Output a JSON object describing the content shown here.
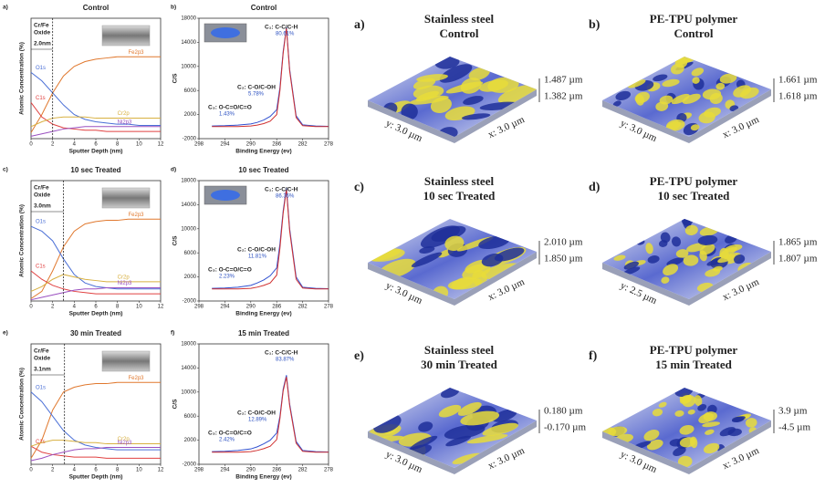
{
  "chart_data": [
    {
      "type": "line",
      "panel_label": "a)",
      "title": "Control",
      "x_label": "Sputter Depth (nm)",
      "y_label": "Atomic Concentration (%)",
      "x": [
        0,
        1,
        2,
        3,
        4,
        5,
        6,
        7,
        8,
        9,
        10,
        11,
        12
      ],
      "xlim": [
        0,
        12
      ],
      "ylim": [
        0,
        100
      ],
      "xticks": [
        0,
        2,
        4,
        6,
        8,
        10,
        12
      ],
      "oxide_region": {
        "lines": [
          "Cr/Fe",
          "Oxide"
        ],
        "depth": {
          "value": 2,
          "label": "2.0nm"
        }
      },
      "series": [
        {
          "name": "Fe2p3",
          "color": "#e0782e",
          "values": [
            5,
            20,
            38,
            52,
            60,
            64,
            66,
            67,
            68,
            68,
            68,
            68,
            68
          ]
        },
        {
          "name": "O1s",
          "color": "#4a6fd6",
          "values": [
            55,
            48,
            38,
            28,
            20,
            16,
            14,
            13,
            12,
            12,
            11,
            11,
            11
          ]
        },
        {
          "name": "C1s",
          "color": "#e04040",
          "values": [
            30,
            18,
            12,
            9,
            8,
            7,
            7,
            6,
            6,
            6,
            6,
            6,
            6
          ]
        },
        {
          "name": "Cr2p",
          "color": "#d8b040",
          "values": [
            10,
            14,
            17,
            18,
            18,
            18,
            17,
            17,
            17,
            17,
            17,
            17,
            17
          ]
        },
        {
          "name": "Ni2p3",
          "color": "#9a50c0",
          "values": [
            2,
            4,
            6,
            8,
            9,
            10,
            10,
            10,
            10,
            10,
            10,
            10,
            10
          ]
        }
      ]
    },
    {
      "type": "line",
      "panel_label": "b)",
      "title": "Control",
      "x_label": "Binding Energy (ev)",
      "y_label": "C/S",
      "x": [
        296,
        294,
        292,
        290,
        289,
        288,
        287,
        286,
        285.5,
        285,
        284.5,
        284,
        283,
        282,
        280,
        278
      ],
      "xlim": [
        298,
        278
      ],
      "ylim": [
        -2000,
        18000
      ],
      "xticks": [
        298,
        294,
        290,
        286,
        282,
        278
      ],
      "yticks": [
        -2000,
        2000,
        6000,
        10000,
        14000,
        18000
      ],
      "components": [
        {
          "label": "C₁: C-C/C-H",
          "percent": "80.61%"
        },
        {
          "label": "C₂: C-O/C-OH",
          "percent": "5.78%"
        },
        {
          "label": "C₃: O-C=O/C=O",
          "percent": "1.43%"
        }
      ],
      "series": [
        {
          "color": "#3050d0",
          "values": [
            100,
            150,
            250,
            450,
            700,
            1100,
            1700,
            2800,
            6500,
            12500,
            16500,
            9500,
            1800,
            300,
            100,
            50
          ]
        },
        {
          "color": "#d03030",
          "values": [
            0,
            0,
            0,
            100,
            250,
            500,
            900,
            2000,
            6000,
            12200,
            16300,
            9200,
            1500,
            150,
            0,
            0
          ]
        }
      ]
    },
    {
      "type": "line",
      "panel_label": "c)",
      "title": "10 sec Treated",
      "x_label": "Sputter Depth (nm)",
      "y_label": "Atomic Concentration (%)",
      "x": [
        0,
        1,
        2,
        3,
        4,
        5,
        6,
        7,
        8,
        9,
        10,
        11,
        12
      ],
      "xlim": [
        0,
        12
      ],
      "ylim": [
        0,
        100
      ],
      "xticks": [
        0,
        2,
        4,
        6,
        8,
        10,
        12
      ],
      "oxide_region": {
        "lines": [
          "Cr/Fe",
          "Oxide"
        ],
        "depth": {
          "value": 3,
          "label": "3.0nm"
        }
      },
      "series": [
        {
          "name": "Fe2p3",
          "color": "#e0782e",
          "values": [
            2,
            8,
            25,
            45,
            58,
            64,
            66,
            67,
            67,
            68,
            68,
            68,
            68
          ]
        },
        {
          "name": "O1s",
          "color": "#4a6fd6",
          "values": [
            62,
            58,
            50,
            35,
            22,
            15,
            12,
            11,
            10,
            10,
            10,
            10,
            10
          ]
        },
        {
          "name": "C1s",
          "color": "#e04040",
          "values": [
            25,
            18,
            13,
            10,
            8,
            7,
            6,
            6,
            6,
            6,
            6,
            6,
            6
          ]
        },
        {
          "name": "Cr2p",
          "color": "#d8b040",
          "values": [
            8,
            12,
            18,
            22,
            20,
            18,
            17,
            16,
            16,
            16,
            16,
            16,
            16
          ]
        },
        {
          "name": "Ni2p3",
          "color": "#9a50c0",
          "values": [
            1,
            3,
            5,
            7,
            9,
            10,
            10,
            11,
            11,
            11,
            11,
            11,
            11
          ]
        }
      ]
    },
    {
      "type": "line",
      "panel_label": "d)",
      "title": "10 sec Treated",
      "x_label": "Binding Energy (ev)",
      "y_label": "C/S",
      "x": [
        296,
        294,
        292,
        290,
        289,
        288,
        287,
        286,
        285.5,
        285,
        284.5,
        284,
        283,
        282,
        280,
        278
      ],
      "xlim": [
        298,
        278
      ],
      "ylim": [
        -2000,
        18000
      ],
      "xticks": [
        298,
        294,
        290,
        286,
        282,
        278
      ],
      "yticks": [
        -2000,
        2000,
        6000,
        10000,
        14000,
        18000
      ],
      "components": [
        {
          "label": "C₁: C-C/C-H",
          "percent": "86.36%"
        },
        {
          "label": "C₂: C-O/C-OH",
          "percent": "11.81%"
        },
        {
          "label": "C₃: O-C=O/C=O",
          "percent": "2.23%"
        }
      ],
      "series": [
        {
          "color": "#3050d0",
          "values": [
            100,
            150,
            300,
            600,
            1000,
            1500,
            2200,
            3500,
            7500,
            13000,
            16800,
            10000,
            2000,
            300,
            100,
            50
          ]
        },
        {
          "color": "#d03030",
          "values": [
            0,
            0,
            0,
            100,
            300,
            600,
            1000,
            2300,
            6800,
            12600,
            16500,
            9600,
            1600,
            150,
            0,
            0
          ]
        }
      ]
    },
    {
      "type": "line",
      "panel_label": "e)",
      "title": "30 min Treated",
      "x_label": "Sputter Depth (nm)",
      "y_label": "Atomic Concentration (%)",
      "x": [
        0,
        1,
        2,
        3,
        4,
        5,
        6,
        7,
        8,
        9,
        10,
        11,
        12
      ],
      "xlim": [
        0,
        12
      ],
      "ylim": [
        0,
        100
      ],
      "xticks": [
        0,
        2,
        4,
        6,
        8,
        10,
        12
      ],
      "oxide_region": {
        "lines": [
          "Cr/Fe",
          "Oxide"
        ],
        "depth": {
          "value": 3.1,
          "label": "3.1nm"
        }
      },
      "series": [
        {
          "name": "Fe2p3",
          "color": "#e0782e",
          "values": [
            5,
            20,
            45,
            60,
            64,
            66,
            67,
            67,
            68,
            68,
            68,
            68,
            68
          ]
        },
        {
          "name": "O1s",
          "color": "#4a6fd6",
          "values": [
            60,
            52,
            40,
            28,
            20,
            16,
            14,
            13,
            12,
            12,
            12,
            12,
            12
          ]
        },
        {
          "name": "C1s",
          "color": "#e04040",
          "values": [
            15,
            10,
            8,
            7,
            6,
            6,
            6,
            5,
            5,
            5,
            5,
            5,
            5
          ]
        },
        {
          "name": "Cr2p",
          "color": "#d8b040",
          "values": [
            15,
            18,
            20,
            20,
            19,
            18,
            18,
            17,
            17,
            17,
            17,
            17,
            17
          ]
        },
        {
          "name": "Ni2p3",
          "color": "#9a50c0",
          "values": [
            3,
            5,
            8,
            10,
            12,
            13,
            13,
            14,
            14,
            14,
            14,
            14,
            14
          ]
        }
      ]
    },
    {
      "type": "line",
      "panel_label": "f)",
      "title": "15 min Treated",
      "x_label": "Binding Energy (ev)",
      "y_label": "C/S",
      "x": [
        296,
        294,
        292,
        290,
        289,
        288,
        287,
        286,
        285.5,
        285,
        284.5,
        284,
        283,
        282,
        280,
        278
      ],
      "xlim": [
        298,
        278
      ],
      "ylim": [
        -2000,
        18000
      ],
      "xticks": [
        298,
        294,
        290,
        286,
        282,
        278
      ],
      "yticks": [
        -2000,
        2000,
        6000,
        10000,
        14000,
        18000
      ],
      "components": [
        {
          "label": "C₁: C-C/C-H",
          "percent": "83.87%"
        },
        {
          "label": "C₂: C-O/C-OH",
          "percent": "12.89%"
        },
        {
          "label": "C₃: O-C=O/C=O",
          "percent": "2.42%"
        }
      ],
      "series": [
        {
          "color": "#3050d0",
          "values": [
            100,
            150,
            300,
            550,
            900,
            1400,
            2000,
            3200,
            6000,
            10500,
            12800,
            8000,
            1800,
            300,
            100,
            50
          ]
        },
        {
          "color": "#d03030",
          "values": [
            0,
            0,
            0,
            100,
            300,
            600,
            1000,
            2100,
            5600,
            10200,
            12500,
            7700,
            1500,
            150,
            0,
            0
          ]
        }
      ]
    }
  ],
  "afm_panels": [
    {
      "letter": "a)",
      "title": [
        "Stainless steel",
        "Control"
      ],
      "z_top": "1.487 µm",
      "z_bottom": "1.382 µm",
      "y_axis": "y: 3.0 µm",
      "x_axis": "x: 3.0 µm"
    },
    {
      "letter": "b)",
      "title": [
        "PE-TPU polymer",
        "Control"
      ],
      "z_top": "1.661 µm",
      "z_bottom": "1.618 µm",
      "y_axis": "y: 3.0 µm",
      "x_axis": "x: 3.0 µm"
    },
    {
      "letter": "c)",
      "title": [
        "Stainless steel",
        "10 sec Treated"
      ],
      "z_top": "2.010 µm",
      "z_bottom": "1.850 µm",
      "y_axis": "y: 3.0 µm",
      "x_axis": "x: 3.0 µm"
    },
    {
      "letter": "d)",
      "title": [
        "PE-TPU polymer",
        "10 sec Treated"
      ],
      "z_top": "1.865 µm",
      "z_bottom": "1.807 µm",
      "y_axis": "y: 2.5 µm",
      "x_axis": "x: 3.0 µm"
    },
    {
      "letter": "e)",
      "title": [
        "Stainless steel",
        "30 min Treated"
      ],
      "z_top": "0.180 µm",
      "z_bottom": "-0.170 µm",
      "y_axis": "y: 3.0 µm",
      "x_axis": "x: 3.0 µm"
    },
    {
      "letter": "f)",
      "title": [
        "PE-TPU polymer",
        "15 min Treated"
      ],
      "z_top": "3.9 µm",
      "z_bottom": "-4.5 µm",
      "y_axis": "y: 3.0 µm",
      "x_axis": "x: 3.0 µm"
    }
  ]
}
